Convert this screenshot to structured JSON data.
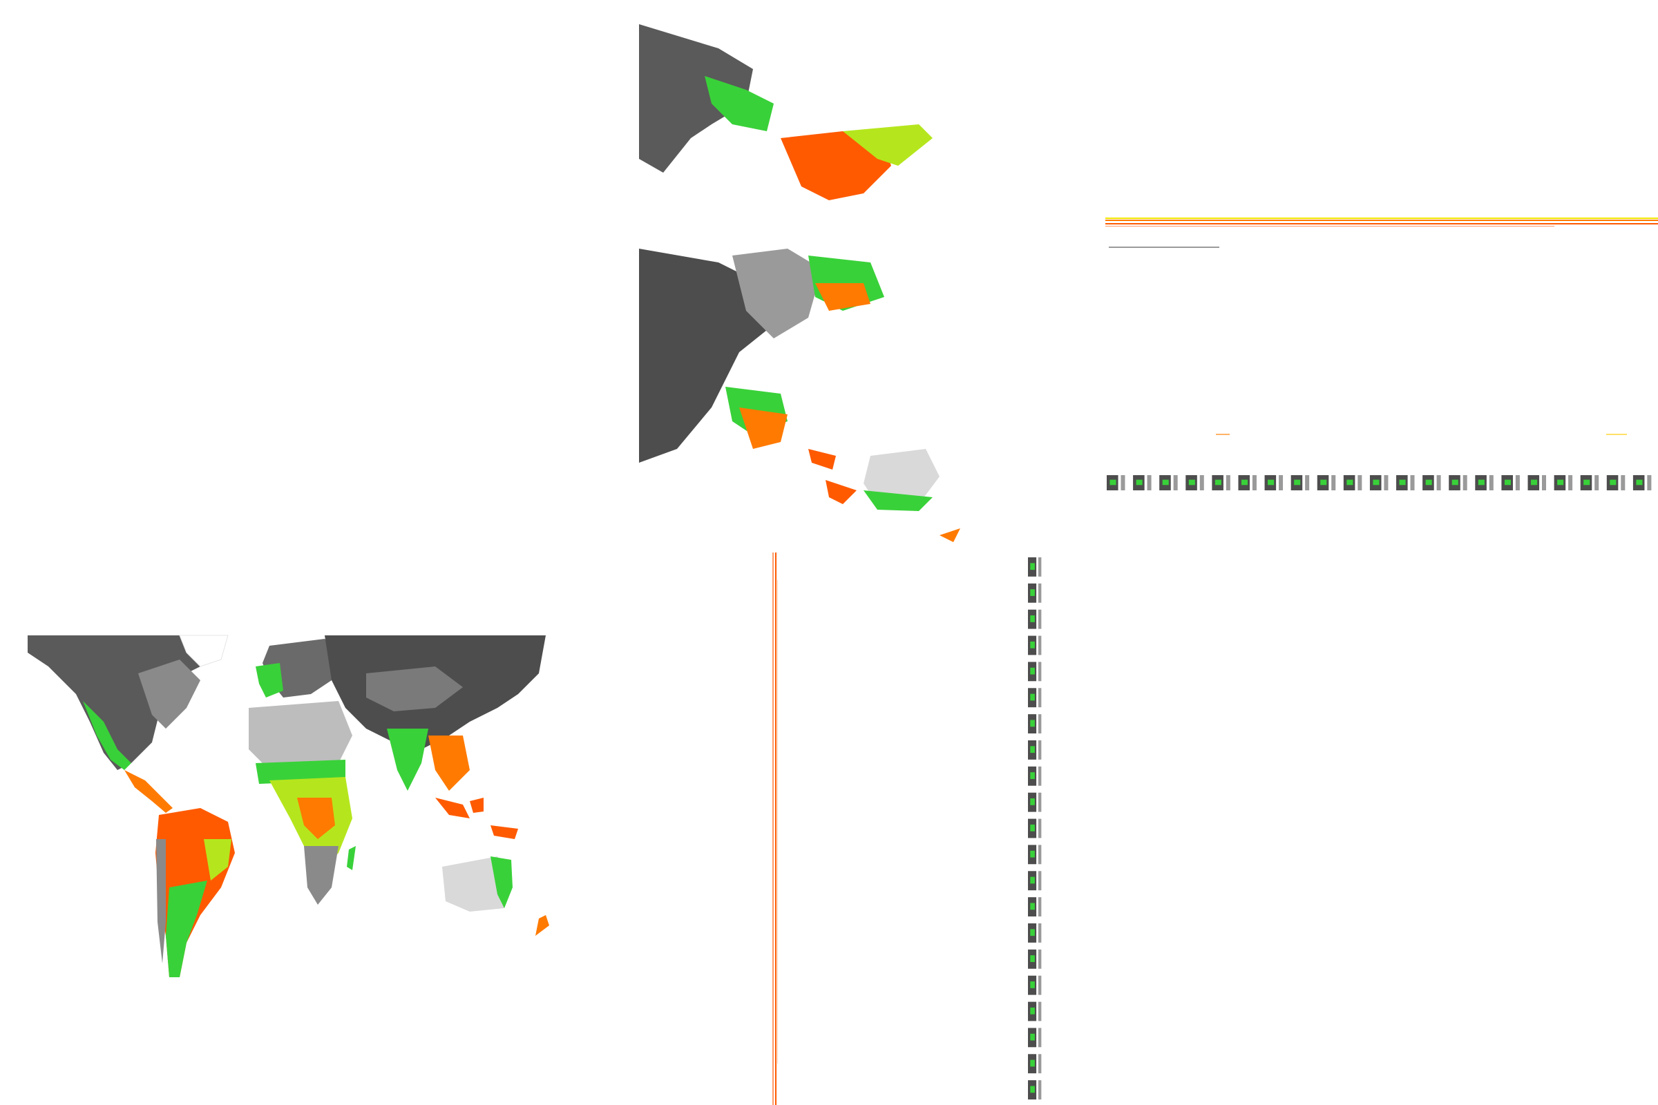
{
  "figure": {
    "palette": {
      "background": "#ffffff",
      "land_low": "#4d4d4d",
      "land_mid": "#9a9a9a",
      "land_light": "#d9d9d9",
      "desert": "#bdbdbd",
      "green": "#39d139",
      "lime": "#b5e61d",
      "yellow": "#f2e600",
      "orange": "#ff7a00",
      "red_orange": "#ff5a00",
      "blue": "#4f6fd0"
    },
    "panels": [
      {
        "id": "world-map",
        "kind": "global-raster",
        "icon": "world-map-icon"
      },
      {
        "id": "world-map-rotated",
        "kind": "global-raster-rotated-90",
        "icon": "rotated-map-icon"
      },
      {
        "id": "horizontal-strip",
        "kind": "compressed-raster-row",
        "icon": "strip-icon"
      },
      {
        "id": "horizontal-thumbnails",
        "kind": "tiled-thumbnails",
        "count": 21,
        "icon": "thumbnail-icon"
      },
      {
        "id": "vertical-strip",
        "kind": "compressed-raster-column",
        "icon": "strip-icon"
      },
      {
        "id": "vertical-thumbnails",
        "kind": "tiled-thumbnails",
        "count": 21,
        "icon": "thumbnail-icon"
      }
    ]
  }
}
